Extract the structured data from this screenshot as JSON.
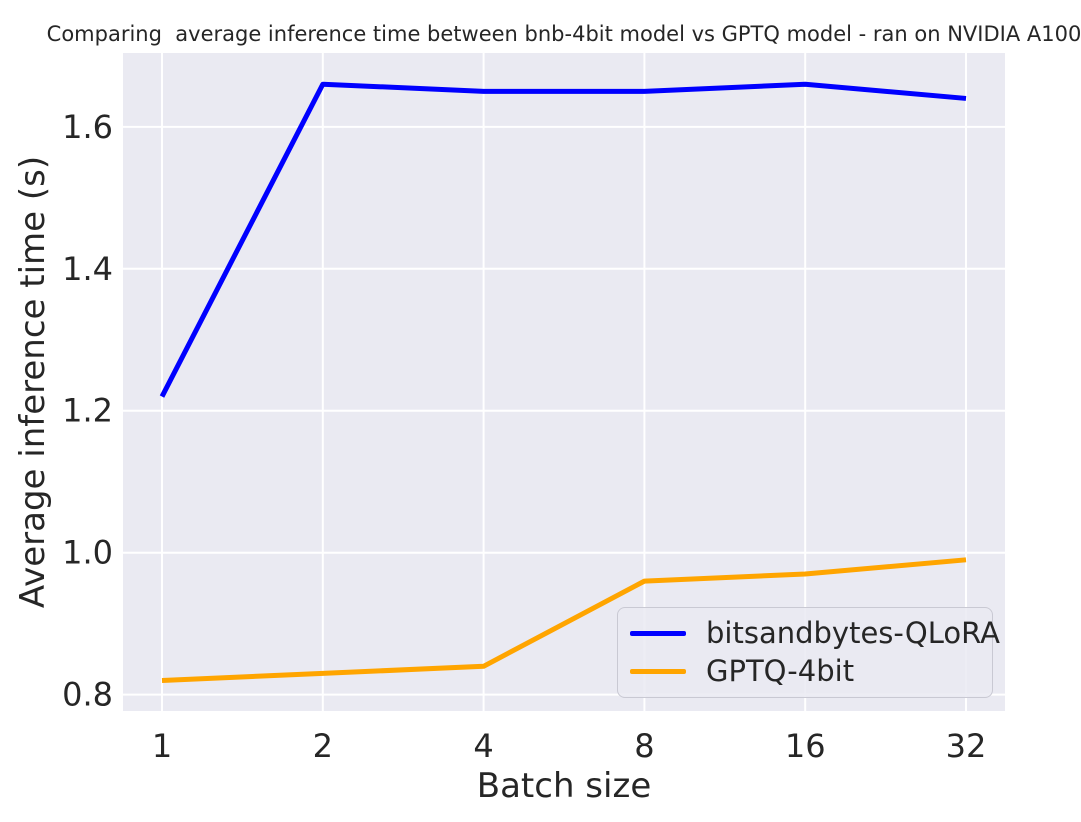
{
  "chart_data": {
    "type": "line",
    "title": "Comparing  average inference time between bnb-4bit model vs GPTQ model - ran on NVIDIA A100",
    "xlabel": "Batch size",
    "ylabel": "Average inference time (s)",
    "categories": [
      "1",
      "2",
      "4",
      "8",
      "16",
      "32"
    ],
    "series": [
      {
        "name": "bitsandbytes-QLoRA",
        "color": "#0000ff",
        "values": [
          1.22,
          1.66,
          1.65,
          1.65,
          1.66,
          1.64
        ]
      },
      {
        "name": "GPTQ-4bit",
        "color": "#ffa500",
        "values": [
          0.82,
          0.83,
          0.84,
          0.96,
          0.97,
          0.99
        ]
      }
    ],
    "ytick_labels": [
      "0.8",
      "1.0",
      "1.2",
      "1.4",
      "1.6"
    ],
    "ytick_values": [
      0.8,
      1.0,
      1.2,
      1.4,
      1.6
    ],
    "ylim": [
      0.777,
      1.704
    ],
    "grid": true,
    "legend_position": "lower right",
    "colors": {
      "plot_background": "#eaeaf2",
      "gridline": "#ffffff",
      "text": "#262626",
      "legend_background": "#eaeaf2",
      "legend_border": "#c9c9d3"
    }
  }
}
